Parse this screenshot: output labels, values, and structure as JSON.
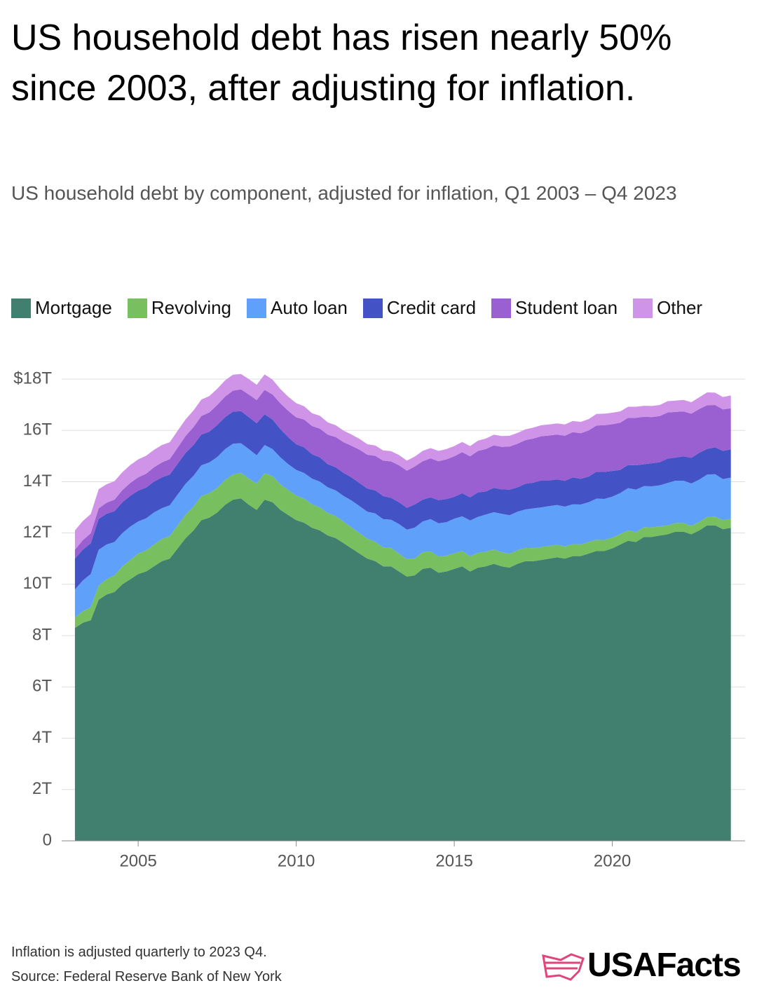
{
  "chart_data": {
    "type": "stacked-area",
    "title": "US household debt has risen nearly 50% since 2003, after adjusting for inflation.",
    "subtitle": "US household debt by component, adjusted for inflation, Q1 2003 – Q4 2023",
    "note": "Inflation is adjusted quarterly to 2023 Q4.",
    "source": "Source: Federal Reserve Bank of New York",
    "logo": "USAFacts",
    "x": [
      2003,
      2003.25,
      2003.5,
      2003.75,
      2004,
      2004.25,
      2004.5,
      2004.75,
      2005,
      2005.25,
      2005.5,
      2005.75,
      2006,
      2006.25,
      2006.5,
      2006.75,
      2007,
      2007.25,
      2007.5,
      2007.75,
      2008,
      2008.25,
      2008.5,
      2008.75,
      2009,
      2009.25,
      2009.5,
      2009.75,
      2010,
      2010.25,
      2010.5,
      2010.75,
      2011,
      2011.25,
      2011.5,
      2011.75,
      2012,
      2012.25,
      2012.5,
      2012.75,
      2013,
      2013.25,
      2013.5,
      2013.75,
      2014,
      2014.25,
      2014.5,
      2014.75,
      2015,
      2015.25,
      2015.5,
      2015.75,
      2016,
      2016.25,
      2016.5,
      2016.75,
      2017,
      2017.25,
      2017.5,
      2017.75,
      2018,
      2018.25,
      2018.5,
      2018.75,
      2019,
      2019.25,
      2019.5,
      2019.75,
      2020,
      2020.25,
      2020.5,
      2020.75,
      2021,
      2021.25,
      2021.5,
      2021.75,
      2022,
      2022.25,
      2022.5,
      2022.75,
      2023,
      2023.25,
      2023.5,
      2023.75
    ],
    "series": [
      {
        "name": "Mortgage",
        "color": "#417f6e",
        "values": [
          8.3,
          8.5,
          8.6,
          9.4,
          9.6,
          9.7,
          10.0,
          10.2,
          10.4,
          10.5,
          10.7,
          10.9,
          11.0,
          11.4,
          11.8,
          12.1,
          12.5,
          12.6,
          12.8,
          13.1,
          13.3,
          13.35,
          13.1,
          12.9,
          13.3,
          13.2,
          12.9,
          12.7,
          12.5,
          12.4,
          12.2,
          12.1,
          11.9,
          11.8,
          11.6,
          11.4,
          11.2,
          11.0,
          10.9,
          10.7,
          10.7,
          10.5,
          10.3,
          10.35,
          10.6,
          10.65,
          10.45,
          10.5,
          10.6,
          10.7,
          10.5,
          10.65,
          10.7,
          10.8,
          10.7,
          10.65,
          10.8,
          10.9,
          10.9,
          10.95,
          11.0,
          11.05,
          11.0,
          11.1,
          11.1,
          11.2,
          11.3,
          11.3,
          11.4,
          11.55,
          11.7,
          11.65,
          11.85,
          11.85,
          11.9,
          11.95,
          12.05,
          12.05,
          11.95,
          12.1,
          12.3,
          12.3,
          12.15,
          12.2
        ]
      },
      {
        "name": "Revolving",
        "color": "#78bf5f",
        "values": [
          0.4,
          0.45,
          0.5,
          0.55,
          0.6,
          0.65,
          0.7,
          0.75,
          0.8,
          0.82,
          0.85,
          0.87,
          0.88,
          0.9,
          0.92,
          0.93,
          0.94,
          0.95,
          0.96,
          0.97,
          0.98,
          1.0,
          1.02,
          1.03,
          1.03,
          1.02,
          1.0,
          0.98,
          0.96,
          0.94,
          0.92,
          0.9,
          0.88,
          0.86,
          0.84,
          0.82,
          0.8,
          0.78,
          0.76,
          0.74,
          0.72,
          0.7,
          0.68,
          0.66,
          0.65,
          0.64,
          0.63,
          0.62,
          0.61,
          0.6,
          0.59,
          0.58,
          0.57,
          0.56,
          0.55,
          0.54,
          0.53,
          0.52,
          0.51,
          0.5,
          0.5,
          0.49,
          0.48,
          0.47,
          0.46,
          0.45,
          0.44,
          0.43,
          0.42,
          0.41,
          0.4,
          0.39,
          0.38,
          0.37,
          0.36,
          0.35,
          0.34,
          0.34,
          0.33,
          0.33,
          0.33,
          0.34,
          0.35,
          0.36
        ]
      },
      {
        "name": "Auto loan",
        "color": "#5fa0fb",
        "values": [
          1.1,
          1.2,
          1.3,
          1.4,
          1.35,
          1.3,
          1.3,
          1.3,
          1.25,
          1.25,
          1.25,
          1.2,
          1.2,
          1.2,
          1.2,
          1.2,
          1.2,
          1.2,
          1.2,
          1.2,
          1.2,
          1.15,
          1.15,
          1.1,
          1.1,
          1.05,
          1.05,
          1.0,
          1.0,
          1.0,
          1.0,
          1.0,
          1.0,
          1.0,
          1.0,
          1.05,
          1.05,
          1.05,
          1.1,
          1.1,
          1.1,
          1.15,
          1.15,
          1.2,
          1.2,
          1.25,
          1.3,
          1.3,
          1.35,
          1.35,
          1.4,
          1.4,
          1.45,
          1.45,
          1.5,
          1.5,
          1.5,
          1.5,
          1.55,
          1.55,
          1.55,
          1.55,
          1.55,
          1.55,
          1.55,
          1.55,
          1.6,
          1.6,
          1.6,
          1.6,
          1.65,
          1.65,
          1.6,
          1.6,
          1.6,
          1.65,
          1.65,
          1.65,
          1.65,
          1.65,
          1.65,
          1.65,
          1.6,
          1.6
        ]
      },
      {
        "name": "Credit card",
        "color": "#4352c5",
        "values": [
          1.2,
          1.2,
          1.2,
          1.2,
          1.2,
          1.2,
          1.2,
          1.2,
          1.2,
          1.2,
          1.2,
          1.2,
          1.2,
          1.2,
          1.2,
          1.2,
          1.2,
          1.2,
          1.25,
          1.25,
          1.25,
          1.25,
          1.25,
          1.25,
          1.2,
          1.15,
          1.1,
          1.05,
          1.0,
          1.0,
          0.95,
          0.95,
          0.9,
          0.9,
          0.9,
          0.9,
          0.9,
          0.9,
          0.9,
          0.9,
          0.85,
          0.85,
          0.85,
          0.9,
          0.85,
          0.85,
          0.9,
          0.9,
          0.85,
          0.9,
          0.9,
          0.95,
          0.9,
          0.95,
          0.95,
          1.0,
          0.95,
          1.0,
          1.0,
          1.05,
          1.0,
          1.0,
          1.0,
          1.05,
          1.0,
          1.0,
          1.05,
          1.05,
          1.0,
          0.9,
          0.9,
          0.95,
          0.85,
          0.9,
          0.9,
          0.95,
          0.9,
          0.95,
          1.0,
          1.05,
          1.0,
          1.05,
          1.1,
          1.1
        ]
      },
      {
        "name": "Student loan",
        "color": "#9a5fd1",
        "values": [
          0.35,
          0.37,
          0.39,
          0.41,
          0.43,
          0.45,
          0.47,
          0.5,
          0.52,
          0.54,
          0.56,
          0.58,
          0.6,
          0.63,
          0.66,
          0.7,
          0.72,
          0.75,
          0.78,
          0.8,
          0.82,
          0.85,
          0.88,
          0.9,
          0.95,
          0.98,
          1.0,
          1.03,
          1.05,
          1.08,
          1.1,
          1.12,
          1.15,
          1.18,
          1.2,
          1.23,
          1.3,
          1.32,
          1.35,
          1.38,
          1.42,
          1.44,
          1.45,
          1.48,
          1.5,
          1.52,
          1.52,
          1.55,
          1.58,
          1.6,
          1.6,
          1.62,
          1.65,
          1.66,
          1.66,
          1.68,
          1.7,
          1.7,
          1.72,
          1.72,
          1.75,
          1.75,
          1.76,
          1.76,
          1.78,
          1.8,
          1.8,
          1.82,
          1.82,
          1.84,
          1.84,
          1.85,
          1.85,
          1.8,
          1.8,
          1.8,
          1.78,
          1.75,
          1.72,
          1.7,
          1.7,
          1.65,
          1.62,
          1.6
        ]
      },
      {
        "name": "Other",
        "color": "#cf94e8",
        "values": [
          0.75,
          0.75,
          0.75,
          0.75,
          0.72,
          0.72,
          0.7,
          0.7,
          0.7,
          0.7,
          0.68,
          0.68,
          0.66,
          0.66,
          0.65,
          0.65,
          0.64,
          0.64,
          0.63,
          0.63,
          0.62,
          0.6,
          0.6,
          0.6,
          0.6,
          0.58,
          0.56,
          0.55,
          0.55,
          0.52,
          0.5,
          0.5,
          0.48,
          0.46,
          0.45,
          0.44,
          0.42,
          0.41,
          0.4,
          0.4,
          0.4,
          0.4,
          0.39,
          0.39,
          0.4,
          0.4,
          0.4,
          0.4,
          0.4,
          0.4,
          0.4,
          0.4,
          0.41,
          0.41,
          0.42,
          0.42,
          0.42,
          0.42,
          0.43,
          0.43,
          0.43,
          0.43,
          0.44,
          0.44,
          0.44,
          0.44,
          0.45,
          0.45,
          0.45,
          0.44,
          0.43,
          0.43,
          0.43,
          0.43,
          0.43,
          0.44,
          0.44,
          0.45,
          0.45,
          0.46,
          0.5,
          0.48,
          0.48,
          0.5
        ]
      }
    ],
    "xlim": [
      2002.58,
      2024.2
    ],
    "xticks": [
      2005,
      2010,
      2015,
      2020
    ],
    "ylim": [
      0,
      18
    ],
    "yticks": [
      0,
      {
        "value": 2,
        "label": "2T"
      },
      {
        "value": 4,
        "label": "4T"
      },
      {
        "value": 6,
        "label": "6T"
      },
      {
        "value": 8,
        "label": "8T"
      },
      {
        "value": 10,
        "label": "10T"
      },
      {
        "value": 12,
        "label": "12T"
      },
      {
        "value": 14,
        "label": "14T"
      },
      {
        "value": 16,
        "label": "16T"
      },
      {
        "value": 18,
        "label": "$18T"
      }
    ],
    "grid": true
  }
}
